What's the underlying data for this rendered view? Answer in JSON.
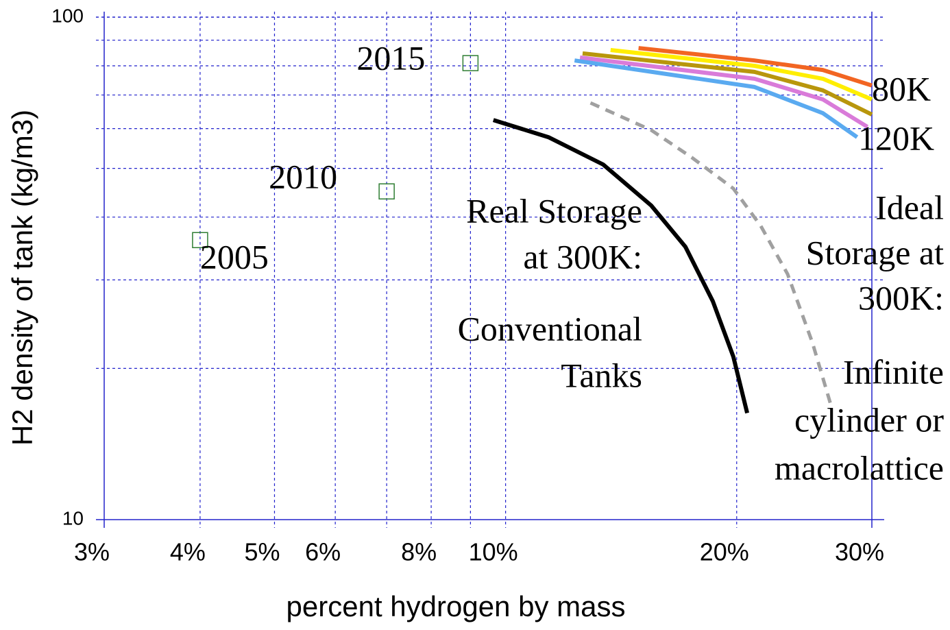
{
  "chart_data": {
    "type": "line",
    "xlabel": "percent hydrogen by mass",
    "ylabel": "H2 density of tank (kg/m3)",
    "xscale": "log",
    "yscale": "log",
    "xlim": [
      3,
      30
    ],
    "ylim": [
      10,
      100
    ],
    "xticks": [
      {
        "value": 3,
        "label": "3%"
      },
      {
        "value": 4,
        "label": "4%"
      },
      {
        "value": 5,
        "label": "5%"
      },
      {
        "value": 6,
        "label": "6%"
      },
      {
        "value": 8,
        "label": "8%"
      },
      {
        "value": 10,
        "label": "10%"
      },
      {
        "value": 20,
        "label": "20%"
      },
      {
        "value": 30,
        "label": "30%"
      }
    ],
    "xminor": [
      7,
      9
    ],
    "yticks": [
      10,
      100
    ],
    "yminor": [
      20,
      30,
      40,
      50,
      60,
      70,
      80,
      90
    ],
    "grid": true,
    "points": {
      "color": "#2e7d32",
      "x": [
        4,
        7,
        9
      ],
      "values": [
        36,
        45,
        81
      ],
      "labels": [
        "2005",
        "2010",
        "2015"
      ]
    },
    "series": [
      {
        "color": "#f26522",
        "x": [
          14.9,
          21.1,
          25.9,
          30
        ],
        "values": [
          86.8,
          82.0,
          78.5,
          73.1
        ]
      },
      {
        "color": "#ffee00",
        "x": [
          13.7,
          21.1,
          25.9,
          30
        ],
        "values": [
          86.0,
          80.0,
          75.4,
          68.6
        ]
      },
      {
        "color": "#b8960c",
        "x": [
          12.6,
          21.1,
          25.9,
          30
        ],
        "values": [
          84.7,
          77.8,
          71.5,
          64.0
        ]
      },
      {
        "color": "#d97bd9",
        "x": [
          12.5,
          21.1,
          25.9,
          29.6
        ],
        "values": [
          83.1,
          75.4,
          68.6,
          60.5
        ]
      },
      {
        "color": "#5aaaf0",
        "x": [
          12.3,
          21.1,
          25.9,
          28.7
        ],
        "values": [
          82.0,
          72.6,
          64.4,
          57.7
        ]
      },
      {
        "color": "#000000",
        "x": [
          9.64,
          11.37,
          13.4,
          15.47,
          17.15,
          18.62,
          19.8,
          20.64
        ],
        "values": [
          62.4,
          57.7,
          50.9,
          42.2,
          34.9,
          27.2,
          21.1,
          16.3
        ]
      },
      {
        "color": "#a0a0a0",
        "dashed": true,
        "x": [
          12.9,
          15.47,
          17.5,
          19.8,
          21.5,
          23.3,
          25.1,
          26.5
        ],
        "values": [
          67.5,
          59.6,
          52.5,
          45.6,
          38.4,
          30.8,
          22.5,
          17.0
        ]
      }
    ],
    "annotations": [
      {
        "lines": [
          "80K"
        ]
      },
      {
        "lines": [
          "120K"
        ]
      },
      {
        "lines": [
          "Real Storage",
          "at 300K:"
        ]
      },
      {
        "lines": [
          "Conventional",
          "Tanks"
        ]
      },
      {
        "lines": [
          "Ideal",
          "Storage at",
          "300K:"
        ]
      },
      {
        "lines": [
          "Infinite",
          "cylinder or",
          "macrolattice"
        ]
      }
    ]
  }
}
